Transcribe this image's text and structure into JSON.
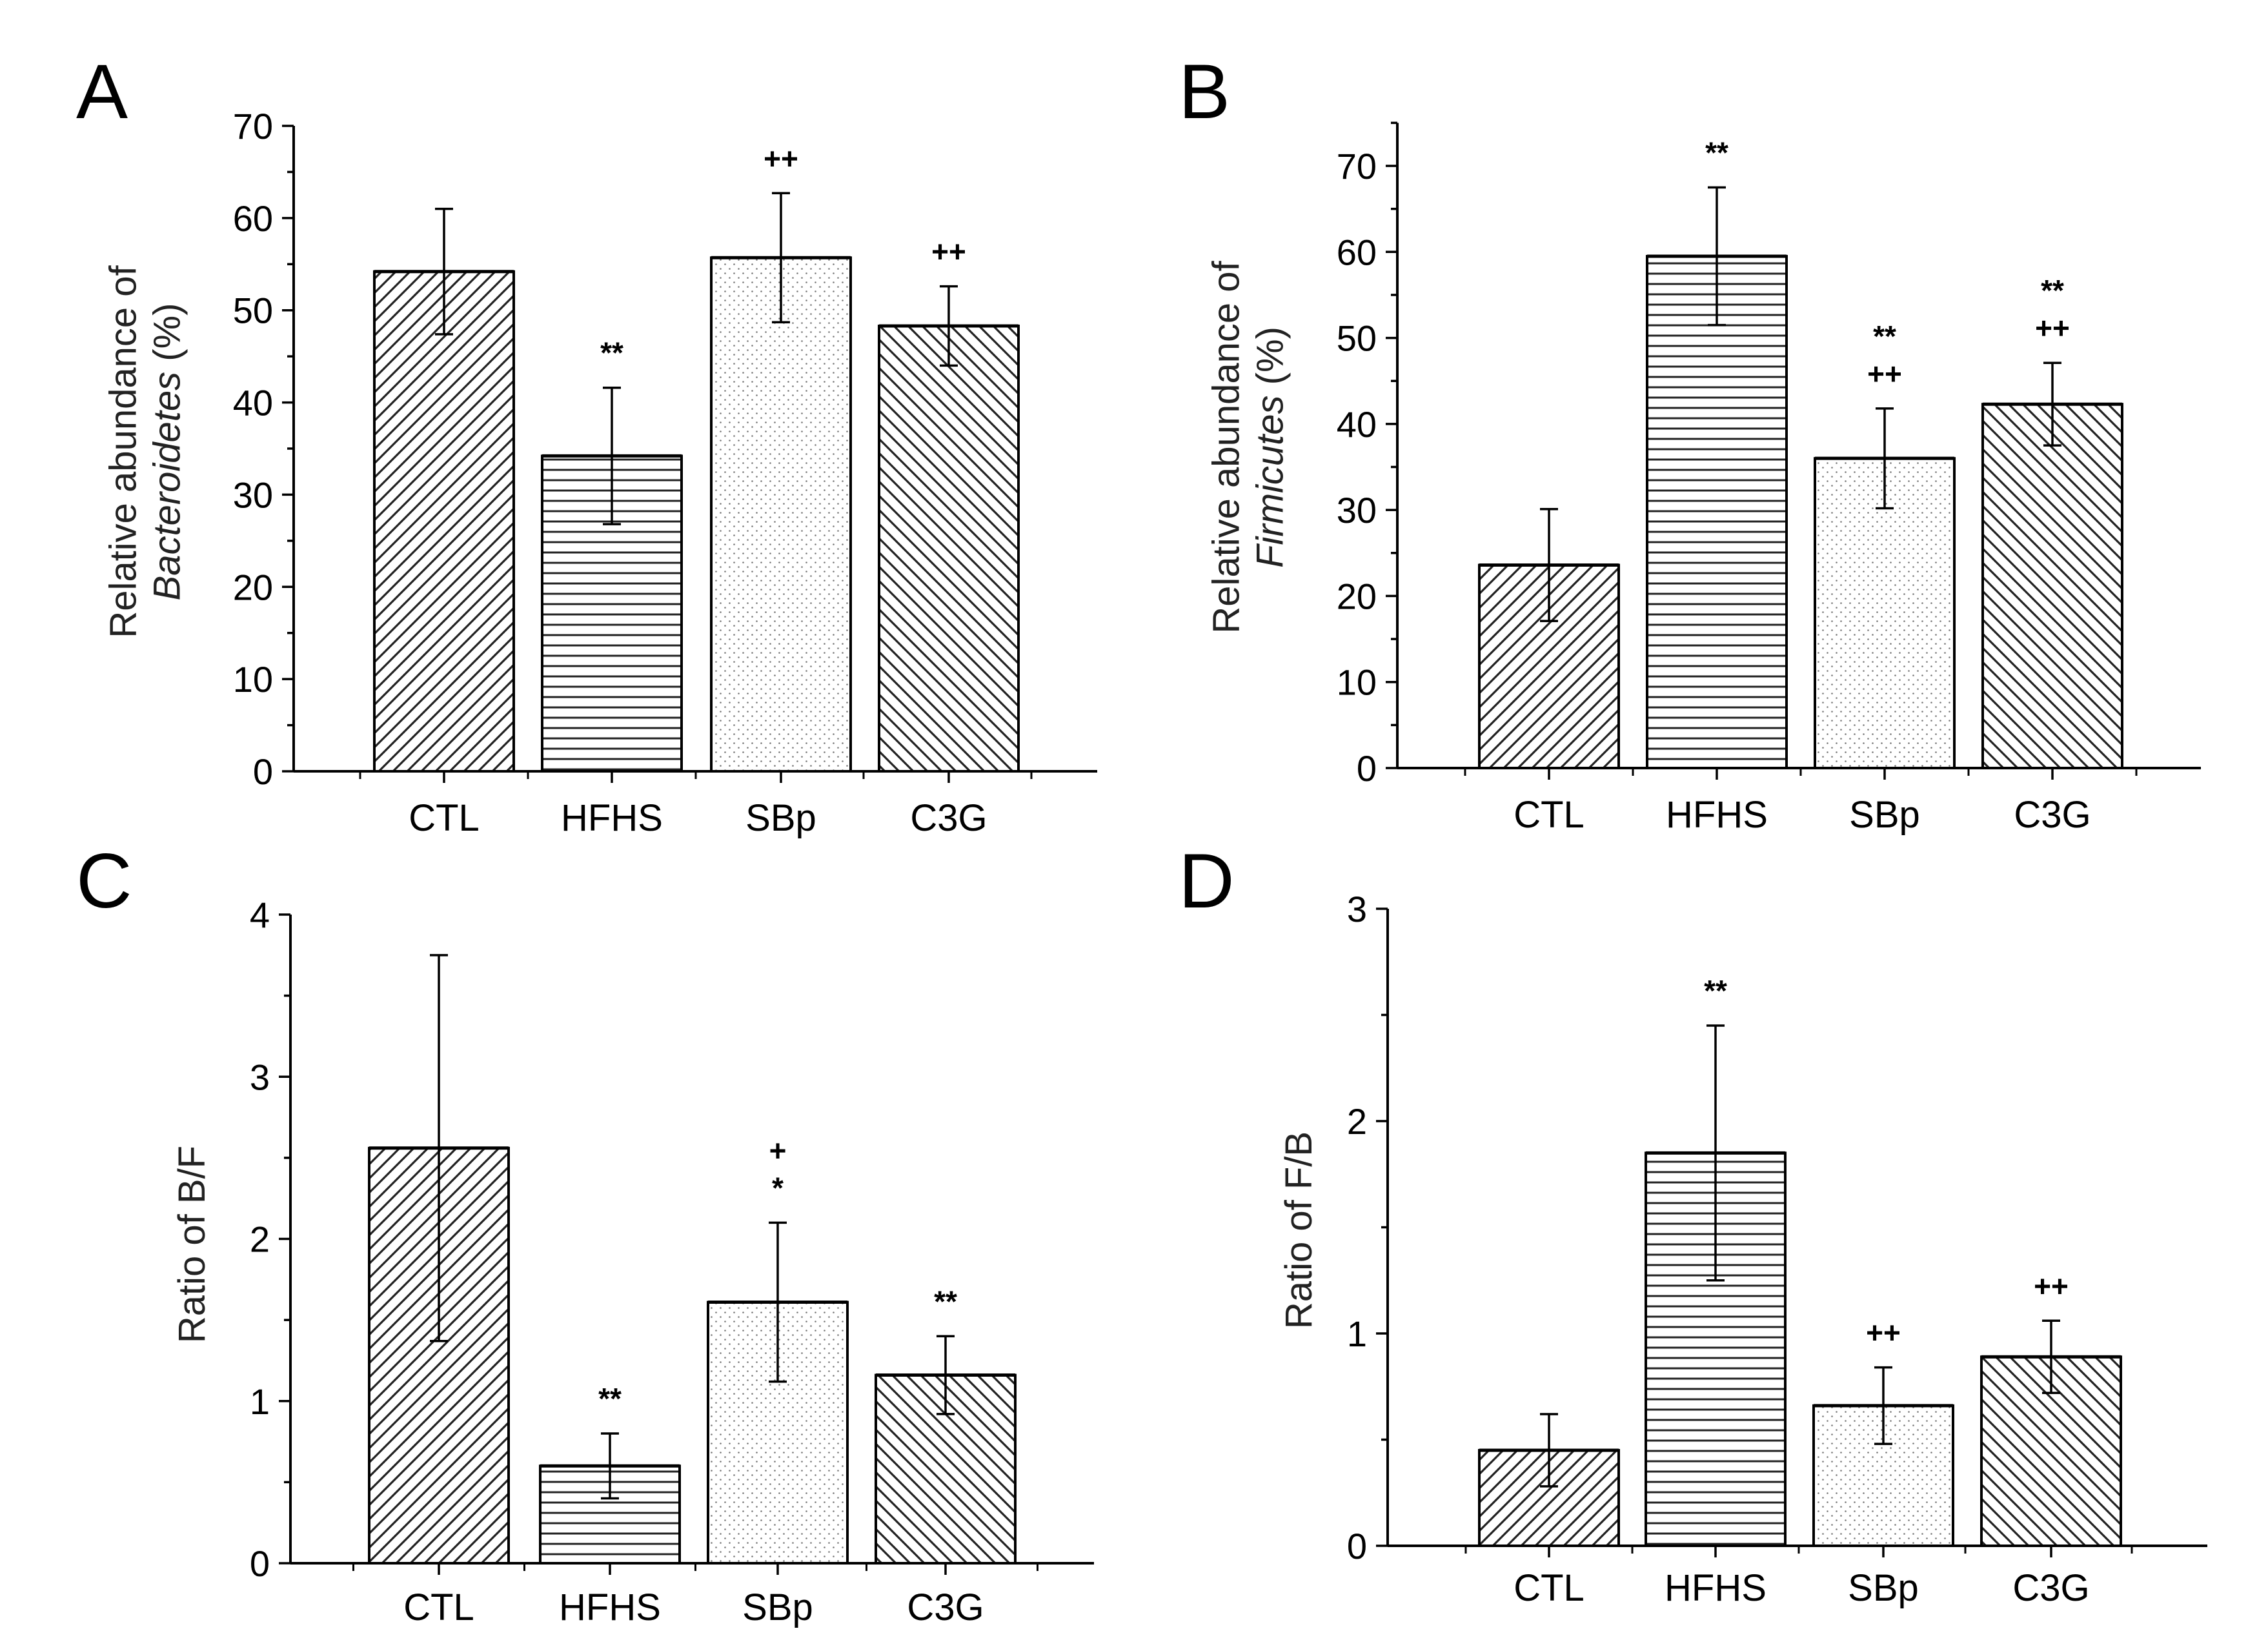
{
  "figure": {
    "panels": [
      "A",
      "B",
      "C",
      "D"
    ]
  },
  "chart_data": [
    {
      "panel": "A",
      "type": "bar",
      "title": "",
      "xlabel": "",
      "ylabel_lines": [
        "Relative abundance of",
        "Bacteroidetes (%)"
      ],
      "ylabel_italic_word": "Bacteroidetes",
      "ylim": [
        0,
        70
      ],
      "yticks": [
        0,
        10,
        20,
        30,
        40,
        50,
        60,
        70
      ],
      "categories": [
        "CTL",
        "HFHS",
        "SBp",
        "C3G"
      ],
      "values": [
        54.2,
        34.2,
        55.7,
        48.3
      ],
      "errors": [
        6.8,
        7.4,
        7.0,
        4.3
      ],
      "annotations": [
        [],
        [
          "**"
        ],
        [
          "++"
        ],
        [
          "++"
        ]
      ],
      "patterns": [
        "diag-right",
        "horizontal",
        "dots",
        "diag-left"
      ]
    },
    {
      "panel": "B",
      "type": "bar",
      "title": "",
      "xlabel": "",
      "ylabel_lines": [
        "Relative abundance of",
        "Firmicutes (%)"
      ],
      "ylabel_italic_word": "Firmicutes",
      "ylim": [
        0,
        75
      ],
      "yticks": [
        0,
        10,
        20,
        30,
        40,
        50,
        60,
        70
      ],
      "categories": [
        "CTL",
        "HFHS",
        "SBp",
        "C3G"
      ],
      "values": [
        23.6,
        59.5,
        36.0,
        42.3
      ],
      "errors": [
        6.5,
        8.0,
        5.8,
        4.8
      ],
      "annotations": [
        [],
        [
          "**"
        ],
        [
          "**",
          "++"
        ],
        [
          "**",
          "++"
        ]
      ],
      "patterns": [
        "diag-right",
        "horizontal",
        "dots",
        "diag-left"
      ]
    },
    {
      "panel": "C",
      "type": "bar",
      "title": "",
      "xlabel": "",
      "ylabel_lines": [
        "Ratio of B/F"
      ],
      "ylabel_italic_word": "",
      "ylim": [
        0,
        4
      ],
      "yticks": [
        0,
        1,
        2,
        3,
        4
      ],
      "categories": [
        "CTL",
        "HFHS",
        "SBp",
        "C3G"
      ],
      "values": [
        2.56,
        0.6,
        1.61,
        1.16
      ],
      "errors": [
        1.19,
        0.2,
        0.49,
        0.24
      ],
      "annotations": [
        [],
        [
          "**"
        ],
        [
          "+",
          "*"
        ],
        [
          "**"
        ]
      ],
      "patterns": [
        "diag-right",
        "horizontal",
        "dots",
        "diag-left"
      ]
    },
    {
      "panel": "D",
      "type": "bar",
      "title": "",
      "xlabel": "",
      "ylabel_lines": [
        "Ratio of F/B"
      ],
      "ylabel_italic_word": "",
      "ylim": [
        0,
        3
      ],
      "yticks": [
        0,
        1,
        2,
        3
      ],
      "categories": [
        "CTL",
        "HFHS",
        "SBp",
        "C3G"
      ],
      "values": [
        0.45,
        1.85,
        0.66,
        0.89
      ],
      "errors": [
        0.17,
        0.6,
        0.18,
        0.17
      ],
      "annotations": [
        [],
        [
          "**"
        ],
        [
          "++"
        ],
        [
          "++"
        ]
      ],
      "patterns": [
        "diag-right",
        "horizontal",
        "dots",
        "diag-left"
      ]
    }
  ]
}
